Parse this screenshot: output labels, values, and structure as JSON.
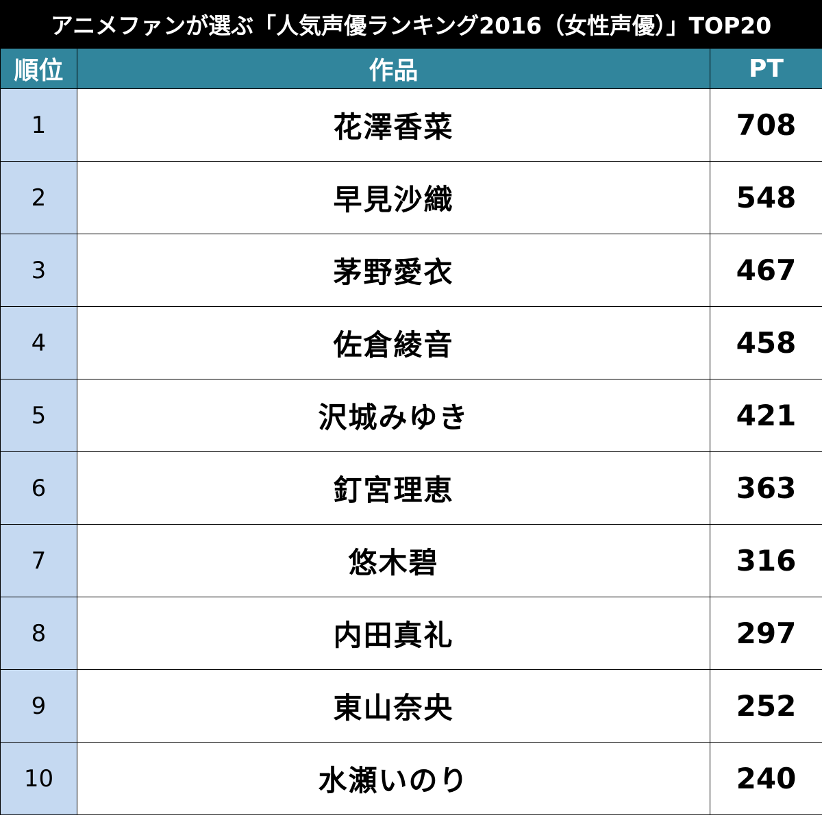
{
  "title": "アニメファンが選ぶ「人気声優ランキング2016（女性声優）」TOP20",
  "header": {
    "rank": "順位",
    "name": "作品",
    "pt": "PT"
  },
  "colors": {
    "title_bg": "#000000",
    "header_bg": "#31859c",
    "rank_bg": "#c5d9f1"
  },
  "chart_data": {
    "type": "table",
    "title": "アニメファンが選ぶ「人気声優ランキング2016（女性声優）」TOP20",
    "columns": [
      "順位",
      "作品",
      "PT"
    ],
    "rows": [
      {
        "rank": "1",
        "name": "花澤香菜",
        "pt": "708"
      },
      {
        "rank": "2",
        "name": "早見沙織",
        "pt": "548"
      },
      {
        "rank": "3",
        "name": "茅野愛衣",
        "pt": "467"
      },
      {
        "rank": "4",
        "name": "佐倉綾音",
        "pt": "458"
      },
      {
        "rank": "5",
        "name": "沢城みゆき",
        "pt": "421"
      },
      {
        "rank": "6",
        "name": "釘宮理恵",
        "pt": "363"
      },
      {
        "rank": "7",
        "name": "悠木碧",
        "pt": "316"
      },
      {
        "rank": "8",
        "name": "内田真礼",
        "pt": "297"
      },
      {
        "rank": "9",
        "name": "東山奈央",
        "pt": "252"
      },
      {
        "rank": "10",
        "name": "水瀬いのり",
        "pt": "240"
      }
    ]
  }
}
